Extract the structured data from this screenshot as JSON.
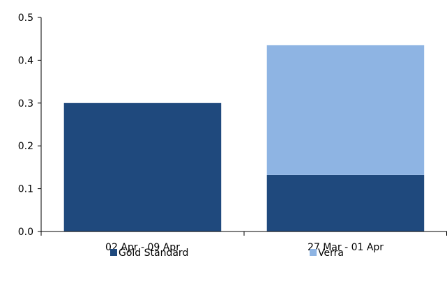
{
  "chart_data": {
    "type": "bar",
    "stacked": true,
    "categories": [
      "02 Apr - 09 Apr",
      "27 Mar - 01 Apr"
    ],
    "series": [
      {
        "name": "Gold Standard",
        "values": [
          0.3,
          0.132
        ],
        "color": "#1f497d"
      },
      {
        "name": "Verra",
        "values": [
          0.0,
          0.303
        ],
        "color": "#8eb4e3"
      }
    ],
    "ylim": [
      0,
      0.5
    ],
    "yticks": [
      "0.0",
      "0.1",
      "0.2",
      "0.3",
      "0.4",
      "0.5"
    ],
    "ytick_values": [
      0,
      0.1,
      0.2,
      0.3,
      0.4,
      0.5
    ],
    "grid": false,
    "legend_position": "bottom",
    "title": "",
    "xlabel": "",
    "ylabel": ""
  }
}
